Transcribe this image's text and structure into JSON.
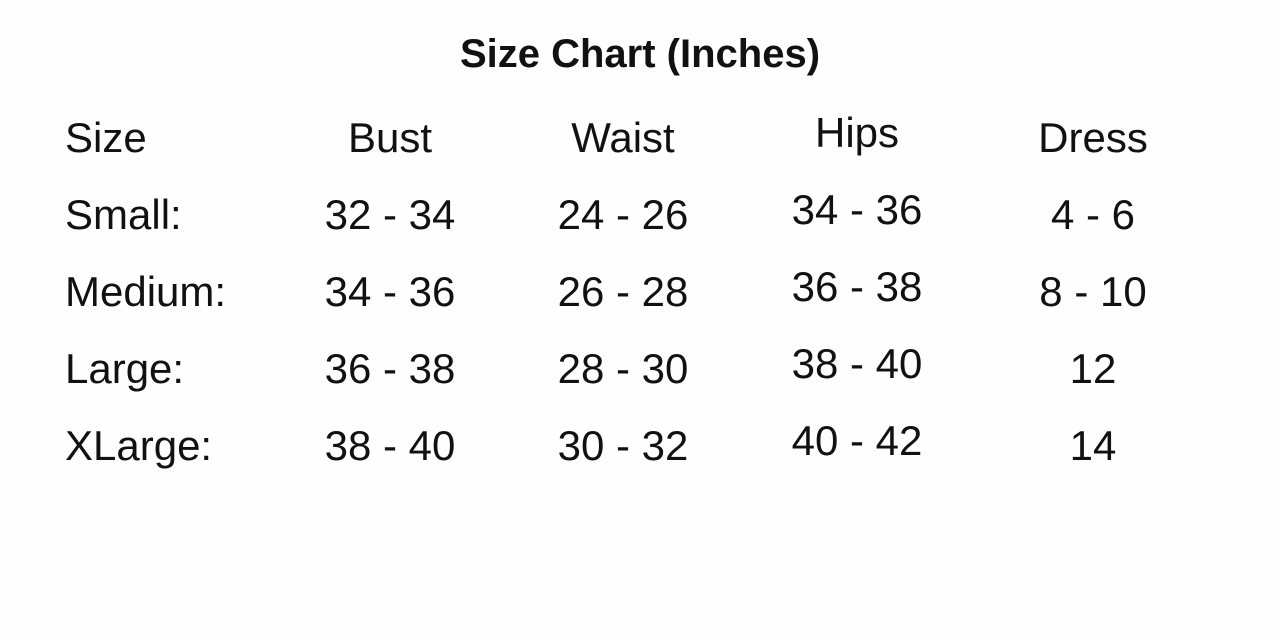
{
  "title": "Size Chart (Inches)",
  "headers": [
    "Size",
    "Bust",
    "Waist",
    "Hips",
    "Dress"
  ],
  "rows": [
    [
      "Small:",
      "32 - 34",
      "24 - 26",
      "34 - 36",
      "4 - 6"
    ],
    [
      "Medium:",
      "34 - 36",
      "26 - 28",
      "36 - 38",
      "8 - 10"
    ],
    [
      "Large:",
      "36 - 38",
      "28 - 30",
      "38 - 40",
      "12"
    ],
    [
      "XLarge:",
      "38 - 40",
      "30 - 32",
      "40 - 42",
      "14"
    ]
  ]
}
